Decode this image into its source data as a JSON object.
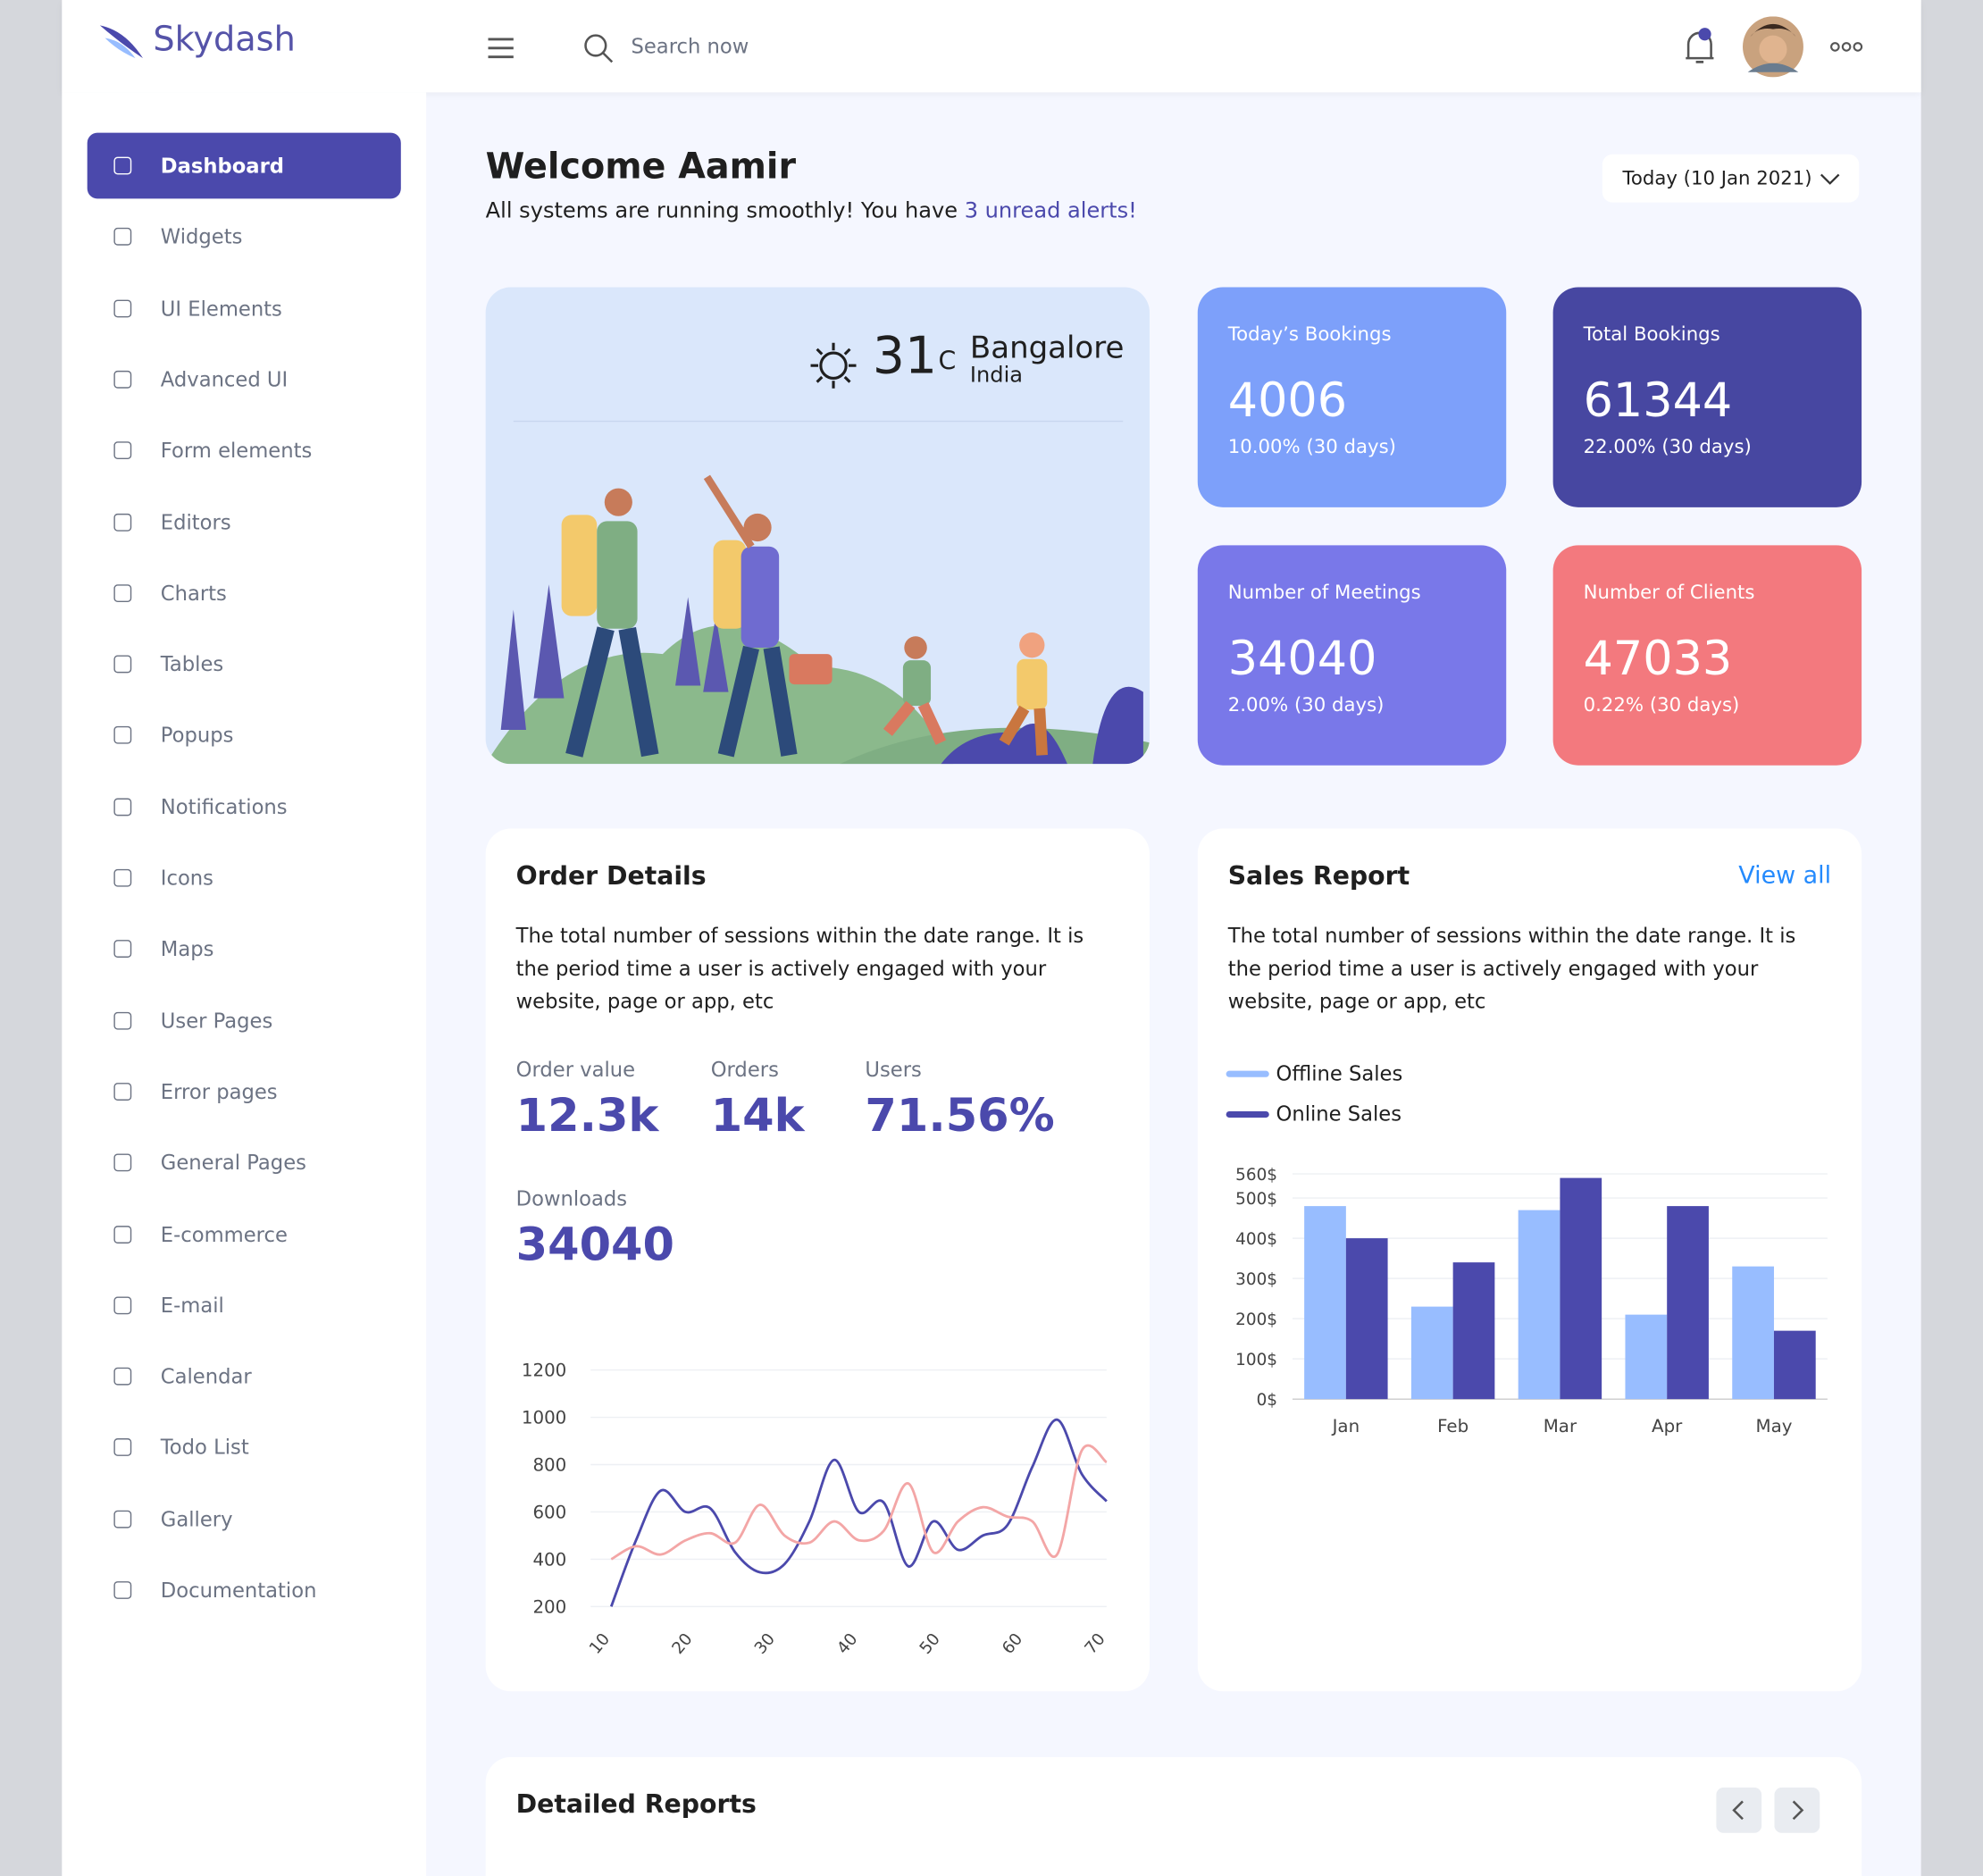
{
  "header": {
    "brand": "Skydash",
    "search_placeholder": "Search now"
  },
  "sidebar": {
    "items": [
      "Dashboard",
      "Widgets",
      "UI Elements",
      "Advanced UI",
      "Form elements",
      "Editors",
      "Charts",
      "Tables",
      "Popups",
      "Notifications",
      "Icons",
      "Maps",
      "User Pages",
      "Error pages",
      "General Pages",
      "E-commerce",
      "E-mail",
      "Calendar",
      "Todo List",
      "Gallery",
      "Documentation"
    ]
  },
  "welcome": {
    "title": "Welcome Aamir",
    "message": "All systems are running smoothly! You have",
    "alerts_link": "3 unread alerts!",
    "date_filter": "Today (10 Jan 2021)"
  },
  "weather": {
    "temperature": "31",
    "unit": "C",
    "city": "Bangalore",
    "country": "India"
  },
  "stat_cards": [
    {
      "title": "Today’s Bookings",
      "value": "4006",
      "change": "10.00% (30 days)",
      "color": "#7DA0FA"
    },
    {
      "title": "Total Bookings",
      "value": "61344",
      "change": "22.00% (30 days)",
      "color": "#4747A1"
    },
    {
      "title": "Number of Meetings",
      "value": "34040",
      "change": "2.00% (30 days)",
      "color": "#7978E9"
    },
    {
      "title": "Number of Clients",
      "value": "47033",
      "change": "0.22% (30 days)",
      "color": "#F3797E"
    }
  ],
  "order_details": {
    "title": "Order Details",
    "description": "The total number of sessions within the date range. It is the period time a user is actively engaged with your website, page or app, etc",
    "stats": [
      {
        "label": "Order value",
        "value": "12.3k"
      },
      {
        "label": "Orders",
        "value": "14k"
      },
      {
        "label": "Users",
        "value": "71.56%"
      },
      {
        "label": "Downloads",
        "value": "34040"
      }
    ]
  },
  "sales_report": {
    "title": "Sales Report",
    "link": "View all",
    "description": "The total number of sessions within the date range. It is the period time a user is actively engaged with your website, page or app, etc"
  },
  "detailed_reports": {
    "title": "Detailed Reports"
  },
  "chart_data": [
    {
      "type": "line",
      "x": [
        10,
        13,
        16,
        19,
        22,
        25,
        28,
        31,
        34,
        37,
        40,
        43,
        46,
        49,
        52,
        55,
        58,
        61,
        64,
        67,
        70
      ],
      "xlim": [
        7.5,
        70
      ],
      "xticks": [
        10,
        20,
        30,
        40,
        50,
        60,
        70
      ],
      "ylim": [
        200,
        1200
      ],
      "yticks": [
        200,
        400,
        600,
        800,
        1000,
        1200
      ],
      "grid": true,
      "series": [
        {
          "color": "#4B49AC",
          "values": [
            200,
            480,
            690,
            600,
            615,
            430,
            345,
            380,
            560,
            820,
            600,
            640,
            370,
            560,
            440,
            500,
            545,
            790,
            990,
            760,
            645
          ]
        },
        {
          "color": "#F3A6A6",
          "values": [
            400,
            455,
            420,
            480,
            510,
            470,
            630,
            500,
            470,
            560,
            480,
            520,
            720,
            430,
            560,
            620,
            580,
            560,
            420,
            860,
            810
          ]
        }
      ]
    },
    {
      "type": "bar",
      "categories": [
        "Jan",
        "Feb",
        "Mar",
        "Apr",
        "May"
      ],
      "ylim": [
        0,
        560
      ],
      "yticks": [
        {
          "value": 0,
          "label": "0$"
        },
        {
          "value": 100,
          "label": "100$"
        },
        {
          "value": 200,
          "label": "200$"
        },
        {
          "value": 300,
          "label": "300$"
        },
        {
          "value": 400,
          "label": "400$"
        },
        {
          "value": 500,
          "label": "500$"
        },
        {
          "value": 560,
          "label": "560$"
        }
      ],
      "grid": true,
      "series": [
        {
          "name": "Offline Sales",
          "color": "#98BDFF",
          "values": [
            480,
            230,
            470,
            210,
            330
          ]
        },
        {
          "name": "Online Sales",
          "color": "#4B49AC",
          "values": [
            400,
            340,
            550,
            480,
            170
          ]
        }
      ]
    }
  ]
}
